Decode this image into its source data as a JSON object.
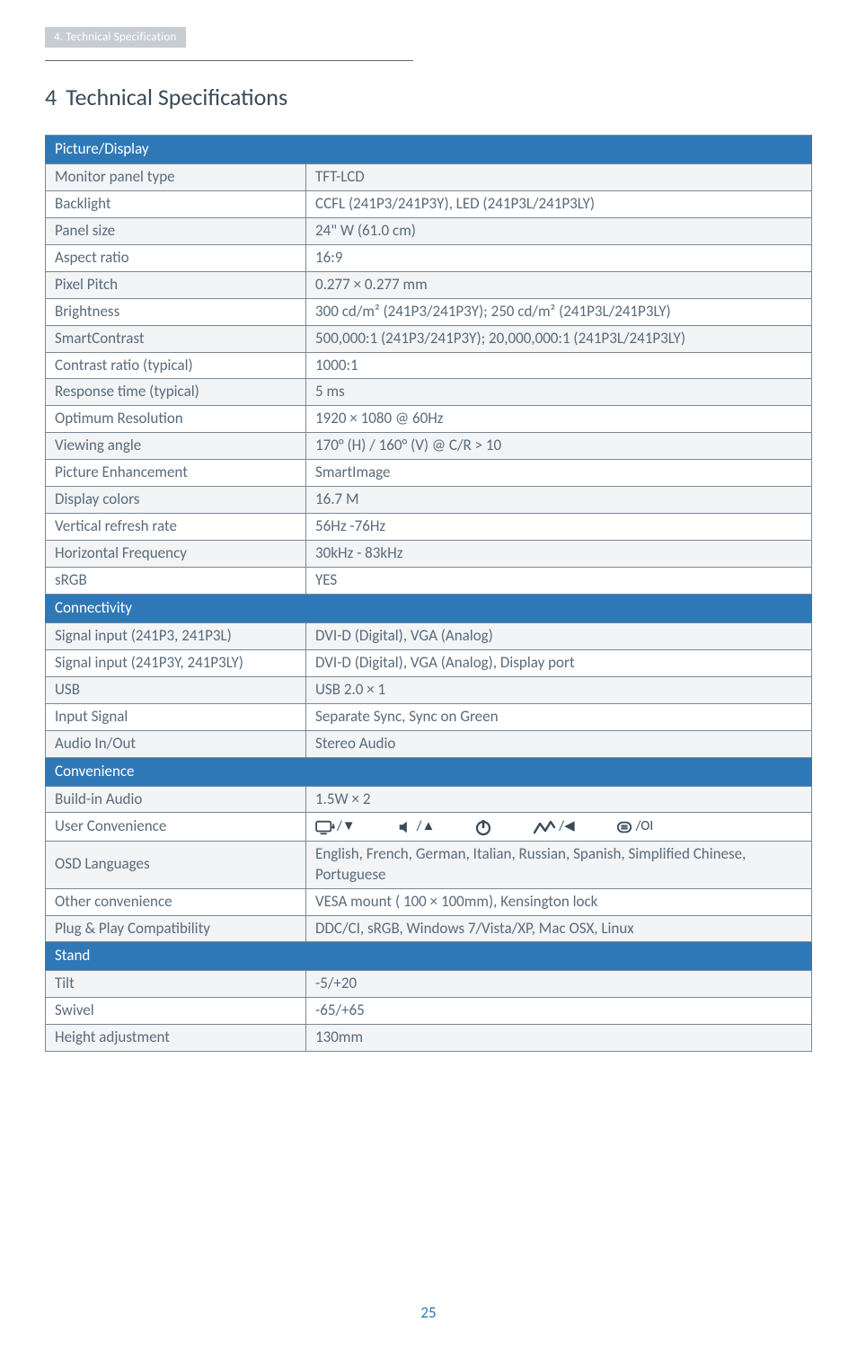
{
  "breadcrumb": "4. Technical Specification",
  "heading_number": "4",
  "heading_text": "Technical Specifications",
  "page_number": "25",
  "colors": {
    "header_bg": "#2f78b7",
    "alt_row_bg": "#f2f4f6",
    "border": "#7a8894",
    "text": "#5a6b7a",
    "breadcrumb_bg": "#c7cdd3"
  },
  "sections": [
    {
      "title": "Picture/Display",
      "rows": [
        {
          "label": "Monitor panel type",
          "value": "TFT-LCD"
        },
        {
          "label": "Backlight",
          "value": "CCFL (241P3/241P3Y), LED (241P3L/241P3LY)"
        },
        {
          "label": "Panel size",
          "value": "24\" W (61.0 cm)"
        },
        {
          "label": "Aspect ratio",
          "value": "16:9"
        },
        {
          "label": "Pixel Pitch",
          "value": "0.277 × 0.277 mm"
        },
        {
          "label": "Brightness",
          "value": "300 cd/m² (241P3/241P3Y); 250 cd/m² (241P3L/241P3LY)"
        },
        {
          "label": "SmartContrast",
          "value": "500,000:1 (241P3/241P3Y); 20,000,000:1 (241P3L/241P3LY)"
        },
        {
          "label": "Contrast ratio (typical)",
          "value": "1000:1"
        },
        {
          "label": "Response time (typical)",
          "value": "5 ms"
        },
        {
          "label": "Optimum Resolution",
          "value": "1920 × 1080 @ 60Hz"
        },
        {
          "label": "Viewing angle",
          "value": "170° (H) / 160° (V) @ C/R > 10"
        },
        {
          "label": "Picture Enhancement",
          "value": "SmartImage"
        },
        {
          "label": "Display colors",
          "value": "16.7 M"
        },
        {
          "label": "Vertical refresh rate",
          "value": "56Hz -76Hz"
        },
        {
          "label": "Horizontal Frequency",
          "value": "30kHz - 83kHz"
        },
        {
          "label": "sRGB",
          "value": "YES"
        }
      ]
    },
    {
      "title": "Connectivity",
      "rows": [
        {
          "label": "Signal input (241P3, 241P3L)",
          "value": "DVI-D (Digital), VGA (Analog)"
        },
        {
          "label": "Signal input  (241P3Y, 241P3LY)",
          "value": "DVI-D (Digital), VGA (Analog), Display port"
        },
        {
          "label": "USB",
          "value": "USB 2.0 × 1"
        },
        {
          "label": "Input Signal",
          "value": "Separate Sync, Sync on Green"
        },
        {
          "label": "Audio In/Out",
          "value": "Stereo Audio"
        }
      ]
    },
    {
      "title": "Convenience",
      "rows": [
        {
          "label": "Build-in Audio",
          "value": "1.5W × 2"
        },
        {
          "label": "User Convenience",
          "value": "__ICONS__"
        },
        {
          "label": "OSD Languages",
          "value": "English, French, German, Italian, Russian, Spanish, Simplified Chinese, Portuguese"
        },
        {
          "label": "Other convenience",
          "value": "VESA mount ( 100 × 100mm), Kensington lock"
        },
        {
          "label": "Plug & Play Compatibility",
          "value": "DDC/CI, sRGB, Windows 7/Vista/XP, Mac OSX, Linux"
        }
      ]
    },
    {
      "title": "Stand",
      "rows": [
        {
          "label": "Tilt",
          "value": "-5/+20"
        },
        {
          "label": "Swivel",
          "value": "-65/+65"
        },
        {
          "label": "Height adjustment",
          "value": "130mm"
        }
      ]
    }
  ],
  "convenience_icons": [
    {
      "name": "smartimage-icon",
      "slash": "/",
      "sym": "▼"
    },
    {
      "name": "volume-icon",
      "slash": "/",
      "sym": "▲"
    },
    {
      "name": "power-icon",
      "slash": "",
      "sym": ""
    },
    {
      "name": "sensor-icon",
      "slash": "/",
      "sym": "◀"
    },
    {
      "name": "menu-icon",
      "slash": "/",
      "sym": "OI"
    }
  ]
}
